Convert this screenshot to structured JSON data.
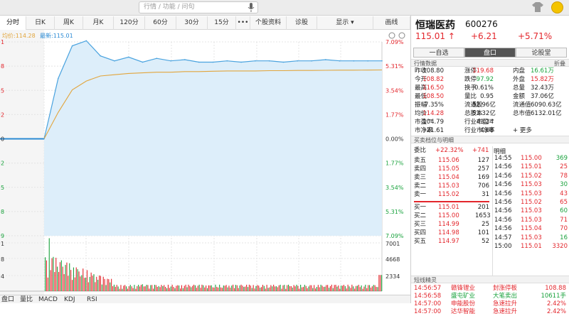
{
  "search": {
    "placeholder": "行情 / 功能 / 问句"
  },
  "tabs": [
    {
      "label": "分时"
    },
    {
      "label": "日K"
    },
    {
      "label": "周K"
    },
    {
      "label": "月K"
    },
    {
      "label": "120分"
    },
    {
      "label": "60分"
    },
    {
      "label": "30分"
    },
    {
      "label": "15分"
    },
    {
      "label": "•••"
    },
    {
      "label": "个股资料"
    },
    {
      "label": "诊股"
    },
    {
      "label": "显示 ▾"
    },
    {
      "label": "画线"
    }
  ],
  "legend": {
    "avg": "均价:114.28",
    "last": "最新:115.01"
  },
  "price_axis": {
    "left": [
      "1",
      "8",
      "5",
      "2",
      "0",
      "2",
      "5",
      "8",
      "9"
    ],
    "right": [
      "7.09%",
      "5.31%",
      "3.54%",
      "1.77%",
      "0.00%",
      "1.77%",
      "3.54%",
      "5.31%",
      "7.09%"
    ]
  },
  "volume_axis": {
    "left": [
      "1",
      "8",
      "4"
    ],
    "right": [
      "7001",
      "4668",
      "2334"
    ]
  },
  "time_axis": [
    "9:15",
    "09:30",
    "10:00",
    "10:30",
    "11:00",
    "11:30",
    "13:30",
    "14:00",
    "14:30",
    "15:00"
  ],
  "bottom_tabs": [
    "盘口",
    "量比",
    "MACD",
    "KDJ",
    "RSI"
  ],
  "chart_data": {
    "type": "line",
    "title": "",
    "x": [
      "09:30",
      "09:40",
      "09:50",
      "10:00",
      "10:10",
      "10:20",
      "10:30",
      "10:40",
      "10:50",
      "11:00",
      "11:10",
      "11:20",
      "11:30",
      "13:10",
      "13:20",
      "13:30",
      "13:40",
      "13:50",
      "14:00",
      "14:10",
      "14:20",
      "14:30",
      "14:40",
      "14:50",
      "15:00"
    ],
    "series": [
      {
        "name": "最新",
        "values": [
          108.8,
          113.6,
          116.2,
          116.6,
          115.4,
          115.0,
          115.3,
          114.9,
          115.2,
          115.0,
          115.1,
          114.9,
          114.9,
          115.0,
          114.9,
          115.0,
          115.0,
          114.9,
          115.0,
          115.0,
          115.1,
          115.0,
          115.0,
          115.0,
          115.0
        ]
      },
      {
        "name": "均价",
        "values": [
          108.8,
          110.9,
          112.7,
          113.4,
          113.8,
          113.9,
          114.0,
          114.05,
          114.1,
          114.1,
          114.15,
          114.15,
          114.18,
          114.2,
          114.2,
          114.2,
          114.22,
          114.22,
          114.24,
          114.24,
          114.25,
          114.26,
          114.26,
          114.27,
          114.28
        ]
      }
    ],
    "prev_close": 108.8,
    "ylim": [
      101.09,
      116.51
    ],
    "volume_max": 9335,
    "volume_ticks": [
      2334,
      4668,
      7001
    ]
  },
  "stock": {
    "name": "恒瑞医药",
    "code": "600276",
    "price": "115.01",
    "change": "+6.21",
    "pct": "+5.71%"
  },
  "side_tabs": [
    "一自选",
    "盘口",
    "论股堂"
  ],
  "quote_header": {
    "title": "行情数据",
    "fold": "折叠"
  },
  "quote_rows": [
    [
      "昨收",
      "108.80",
      "涨停",
      "119.68",
      "内盘",
      "16.61万"
    ],
    [
      "今开",
      "108.82",
      "跌停",
      "97.92",
      "外盘",
      "15.82万"
    ],
    [
      "最高",
      "116.50",
      "换手",
      "0.61%",
      "总量",
      "32.43万"
    ],
    [
      "最低",
      "108.50",
      "量比",
      "0.95",
      "金额",
      "37.06亿"
    ],
    [
      "振幅",
      "7.35%",
      "流通股",
      "52.96亿",
      "流通值",
      "6090.63亿"
    ],
    [
      "均价",
      "114.28",
      "总股本",
      "53.32亿",
      "总市值",
      "6132.01亿"
    ],
    [
      "市盈™",
      "104.79",
      "行业市盈™",
      "43.34",
      "",
      ""
    ],
    [
      "市净率",
      "21.61",
      "行业市净率",
      "4.08",
      "+ 更多",
      ""
    ]
  ],
  "order_header": {
    "title": "买卖档位与明细"
  },
  "weibi": {
    "label": "委比",
    "pct": "+22.32%",
    "diff": "+741"
  },
  "asks": [
    [
      "卖五",
      "115.06",
      "127"
    ],
    [
      "卖四",
      "115.05",
      "257"
    ],
    [
      "卖三",
      "115.04",
      "169"
    ],
    [
      "卖二",
      "115.03",
      "706"
    ],
    [
      "卖一",
      "115.02",
      "31"
    ]
  ],
  "bids": [
    [
      "买一",
      "115.01",
      "201"
    ],
    [
      "买二",
      "115.00",
      "1653"
    ],
    [
      "买三",
      "114.99",
      "25"
    ],
    [
      "买四",
      "114.98",
      "101"
    ],
    [
      "买五",
      "114.97",
      "52"
    ]
  ],
  "detail_header": "明细",
  "details": [
    [
      "14:55",
      "115.00",
      "369"
    ],
    [
      "14:56",
      "115.01",
      "25"
    ],
    [
      "14:56",
      "115.02",
      "78"
    ],
    [
      "14:56",
      "115.03",
      "30"
    ],
    [
      "14:56",
      "115.03",
      "43"
    ],
    [
      "14:56",
      "115.02",
      "65"
    ],
    [
      "14:56",
      "115.03",
      "60"
    ],
    [
      "14:56",
      "115.03",
      "71"
    ],
    [
      "14:56",
      "115.04",
      "70"
    ],
    [
      "14:57",
      "115.03",
      "16"
    ],
    [
      "15:00",
      "115.01",
      "3320"
    ]
  ],
  "short_header": {
    "title": "短线精灵"
  },
  "short": [
    [
      "14:56:57",
      "赣锋锂业",
      "封涨停板",
      "108.88"
    ],
    [
      "14:56:58",
      "盛屯矿业",
      "大笔卖出",
      "10611手"
    ],
    [
      "14:57:00",
      "申能股份",
      "急速拉升",
      "2.42%"
    ],
    [
      "14:57:00",
      "达华智能",
      "急速拉升",
      "2.42%"
    ]
  ]
}
